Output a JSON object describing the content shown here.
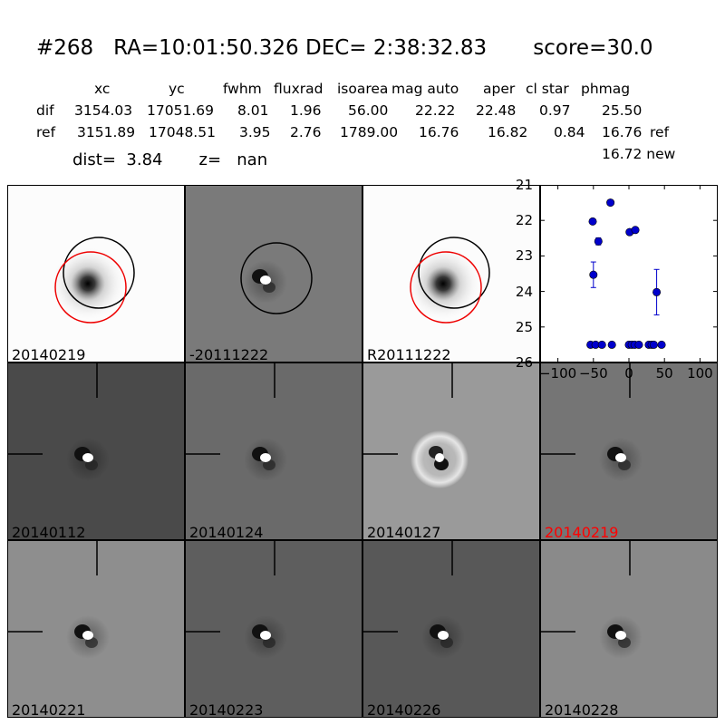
{
  "header": {
    "title": "#268   RA=10:01:50.326 DEC= 2:38:32.83       score=30.0",
    "columns": [
      "xc",
      "yc",
      "fwhm",
      "fluxrad",
      "isoarea",
      "mag auto",
      "aper",
      "cl star",
      "phmag"
    ],
    "rows": [
      {
        "label": "dif",
        "values": [
          "3154.03",
          "17051.69",
          "8.01",
          "1.96",
          "56.00",
          "22.22",
          "22.48",
          "0.97",
          "25.50"
        ],
        "suffix": ""
      },
      {
        "label": "ref",
        "values": [
          "3151.89",
          "17048.51",
          "3.95",
          "2.76",
          "1789.00",
          "16.76",
          "16.82",
          "0.84",
          "16.76"
        ],
        "suffix": "ref"
      }
    ],
    "extra_line": "16.72 new",
    "dist_label": "dist=",
    "dist_value": "3.84",
    "z_label": "z=",
    "z_value": "nan"
  },
  "stamps": {
    "top": [
      {
        "label": "20140219",
        "bg": "#fcfcfc",
        "type": "star"
      },
      {
        "label": "-20111222",
        "bg": "#7a7a7a",
        "type": "dipole"
      },
      {
        "label": "R20111222",
        "bg": "#fcfcfc",
        "type": "star"
      }
    ],
    "middle": [
      {
        "label": "20140112",
        "bg": "#4a4a4a",
        "type": "dipole"
      },
      {
        "label": "20140124",
        "bg": "#6a6a6a",
        "type": "dipole"
      },
      {
        "label": "20140127",
        "bg": "#9a9a9a",
        "type": "ring"
      },
      {
        "label": "20140219",
        "bg": "#757575",
        "type": "dipole",
        "highlight": "#ff0000"
      }
    ],
    "bottom": [
      {
        "label": "20140221",
        "bg": "#8e8e8e",
        "type": "dipole"
      },
      {
        "label": "20140223",
        "bg": "#5e5e5e",
        "type": "dipole"
      },
      {
        "label": "20140226",
        "bg": "#585858",
        "type": "dipole"
      },
      {
        "label": "20140228",
        "bg": "#8a8a8a",
        "type": "dipole"
      }
    ]
  },
  "chart_data": {
    "type": "scatter",
    "xlim": [
      -125,
      125
    ],
    "ylim": [
      26,
      21
    ],
    "xticks": [
      -100,
      -50,
      0,
      50,
      100
    ],
    "xtick_labels": [
      "−100",
      "−50",
      "0",
      "50",
      "100"
    ],
    "yticks": [
      21,
      22,
      23,
      24,
      25,
      26
    ],
    "ytick_labels": [
      "21",
      "22",
      "23",
      "24",
      "25",
      "26"
    ],
    "color": "#0000cc",
    "points": [
      {
        "x": -51,
        "y": 22.03,
        "err": 0.0
      },
      {
        "x": -50,
        "y": 23.53,
        "err": 0.36
      },
      {
        "x": -43,
        "y": 22.59,
        "err": 0.1
      },
      {
        "x": -26,
        "y": 21.5,
        "err": 0.0
      },
      {
        "x": 1,
        "y": 22.33,
        "err": 0.05
      },
      {
        "x": 9,
        "y": 22.27,
        "err": 0.07
      },
      {
        "x": 39,
        "y": 24.02,
        "err": 0.64
      },
      {
        "x": -54,
        "y": 25.5,
        "err": 0
      },
      {
        "x": -47,
        "y": 25.5,
        "err": 0
      },
      {
        "x": -38,
        "y": 25.5,
        "err": 0
      },
      {
        "x": -24,
        "y": 25.5,
        "err": 0
      },
      {
        "x": 0,
        "y": 25.5,
        "err": 0
      },
      {
        "x": 4,
        "y": 25.5,
        "err": 0
      },
      {
        "x": 8,
        "y": 25.5,
        "err": 0
      },
      {
        "x": 14,
        "y": 25.5,
        "err": 0
      },
      {
        "x": 28,
        "y": 25.5,
        "err": 0
      },
      {
        "x": 32,
        "y": 25.5,
        "err": 0
      },
      {
        "x": 35,
        "y": 25.5,
        "err": 0
      },
      {
        "x": 46,
        "y": 25.5,
        "err": 0
      }
    ]
  }
}
